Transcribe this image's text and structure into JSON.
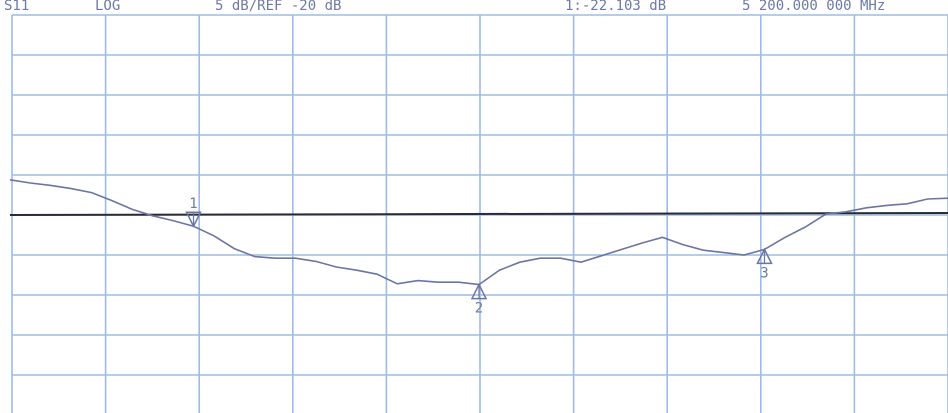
{
  "chart_data": {
    "type": "line",
    "title": "S11",
    "annotations": [
      "LOG",
      "5 dB/REF -20 dB",
      "1:-22.103 dB",
      "5 200.000 000 MHz"
    ],
    "series": [
      {
        "name": "S11",
        "color": "#6a75a6",
        "values": [
          -15.6,
          -16,
          -16.3,
          -16.7,
          -17.2,
          -18.2,
          -19.3,
          -20.1,
          -20.7,
          -21.4,
          -22.6,
          -24.2,
          -25.2,
          -25.4,
          -25.4,
          -25.8,
          -26.5,
          -26.9,
          -27.4,
          -28.6,
          -28.2,
          -28.4,
          -28.4,
          -28.7,
          -26.9,
          -25.9,
          -25.4,
          -25.4,
          -25.9,
          -25.1,
          -24.3,
          -23.5,
          -22.8,
          -23.7,
          -24.4,
          -24.7,
          -25,
          -24.3,
          -22.8,
          -21.5,
          -19.9,
          -19.6,
          -19.1,
          -18.8,
          -18.6,
          -18,
          -17.9
        ]
      }
    ],
    "markers": [
      "1",
      "2",
      "3"
    ],
    "reference_level": -20,
    "ylim": [
      -45,
      5
    ],
    "yticks": [
      -45,
      -40,
      -35,
      -30,
      -25,
      -20,
      -15,
      -10,
      -5,
      0,
      5
    ],
    "grid": true
  }
}
